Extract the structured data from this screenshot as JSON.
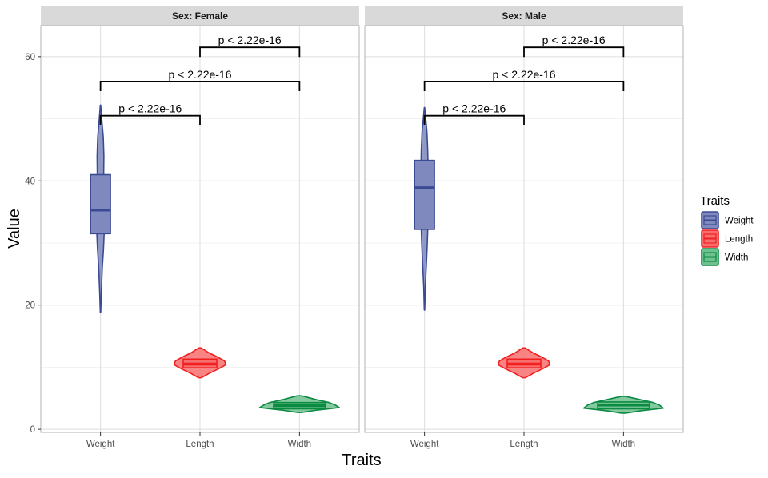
{
  "chart_data": {
    "type": "violin",
    "xlabel": "Traits",
    "ylabel": "Value",
    "ylim": [
      -0.5,
      65
    ],
    "yticks": [
      0,
      20,
      40,
      60
    ],
    "categories": [
      "Weight",
      "Length",
      "Width"
    ],
    "grid": true,
    "legend": {
      "title": "Traits",
      "position": "right",
      "items": [
        "Weight",
        "Length",
        "Width"
      ]
    },
    "colors": {
      "Weight": {
        "fill": "#7f89bd",
        "stroke": "#3b4a94"
      },
      "Length": {
        "fill": "#f86e6e",
        "stroke": "#f02020"
      },
      "Width": {
        "fill": "#6ec08e",
        "stroke": "#0b8a42"
      }
    },
    "panels": [
      {
        "strip": "Sex: Female",
        "groups": [
          {
            "name": "Weight",
            "min": 18.8,
            "max": 52.2,
            "q1": 31.5,
            "median": 35.3,
            "q3": 41.0,
            "maxWidth": 0.04,
            "density": [
              [
                18.8,
                0.05
              ],
              [
                22,
                0.2
              ],
              [
                26,
                0.45
              ],
              [
                29,
                0.75
              ],
              [
                32,
                0.95
              ],
              [
                35,
                1.0
              ],
              [
                38,
                0.9
              ],
              [
                41,
                0.8
              ],
              [
                44,
                0.85
              ],
              [
                47,
                0.7
              ],
              [
                50,
                0.3
              ],
              [
                52.2,
                0.05
              ]
            ]
          },
          {
            "name": "Length",
            "min": 8.3,
            "max": 13.1,
            "q1": 9.9,
            "median": 10.5,
            "q3": 11.3,
            "maxWidth": 0.26,
            "density": [
              [
                8.3,
                0.05
              ],
              [
                9.0,
                0.35
              ],
              [
                9.8,
                0.75
              ],
              [
                10.4,
                1.0
              ],
              [
                11.0,
                0.95
              ],
              [
                11.6,
                0.7
              ],
              [
                12.3,
                0.35
              ],
              [
                13.1,
                0.05
              ]
            ]
          },
          {
            "name": "Width",
            "min": 2.7,
            "max": 5.4,
            "q1": 3.3,
            "median": 3.8,
            "q3": 4.3,
            "maxWidth": 0.4,
            "density": [
              [
                2.7,
                0.05
              ],
              [
                3.1,
                0.45
              ],
              [
                3.5,
                1.0
              ],
              [
                3.9,
                0.9
              ],
              [
                4.3,
                0.75
              ],
              [
                4.8,
                0.4
              ],
              [
                5.4,
                0.05
              ]
            ]
          }
        ],
        "comparisons": [
          {
            "from": "Weight",
            "to": "Length",
            "y": 50.5,
            "label": "p < 2.22e-16"
          },
          {
            "from": "Weight",
            "to": "Width",
            "y": 56.0,
            "label": "p < 2.22e-16"
          },
          {
            "from": "Length",
            "to": "Width",
            "y": 61.5,
            "label": "p < 2.22e-16"
          }
        ]
      },
      {
        "strip": "Sex: Male",
        "groups": [
          {
            "name": "Weight",
            "min": 19.2,
            "max": 51.8,
            "q1": 32.2,
            "median": 38.9,
            "q3": 43.3,
            "maxWidth": 0.04,
            "density": [
              [
                19.2,
                0.05
              ],
              [
                23,
                0.2
              ],
              [
                27,
                0.5
              ],
              [
                30,
                0.7
              ],
              [
                33,
                0.85
              ],
              [
                36,
                0.9
              ],
              [
                39,
                1.0
              ],
              [
                42,
                0.9
              ],
              [
                45,
                0.8
              ],
              [
                48,
                0.6
              ],
              [
                50,
                0.3
              ],
              [
                51.8,
                0.05
              ]
            ]
          },
          {
            "name": "Length",
            "min": 8.3,
            "max": 13.1,
            "q1": 9.9,
            "median": 10.5,
            "q3": 11.3,
            "maxWidth": 0.26,
            "density": [
              [
                8.3,
                0.05
              ],
              [
                9.0,
                0.35
              ],
              [
                9.8,
                0.75
              ],
              [
                10.4,
                1.0
              ],
              [
                11.0,
                0.95
              ],
              [
                11.6,
                0.7
              ],
              [
                12.3,
                0.35
              ],
              [
                13.1,
                0.05
              ]
            ]
          },
          {
            "name": "Width",
            "min": 2.6,
            "max": 5.3,
            "q1": 3.3,
            "median": 3.9,
            "q3": 4.4,
            "maxWidth": 0.4,
            "density": [
              [
                2.6,
                0.05
              ],
              [
                3.0,
                0.45
              ],
              [
                3.4,
                1.0
              ],
              [
                3.9,
                0.9
              ],
              [
                4.3,
                0.75
              ],
              [
                4.8,
                0.4
              ],
              [
                5.3,
                0.05
              ]
            ]
          }
        ],
        "comparisons": [
          {
            "from": "Weight",
            "to": "Length",
            "y": 50.5,
            "label": "p < 2.22e-16"
          },
          {
            "from": "Weight",
            "to": "Width",
            "y": 56.0,
            "label": "p < 2.22e-16"
          },
          {
            "from": "Length",
            "to": "Width",
            "y": 61.5,
            "label": "p < 2.22e-16"
          }
        ]
      }
    ]
  }
}
